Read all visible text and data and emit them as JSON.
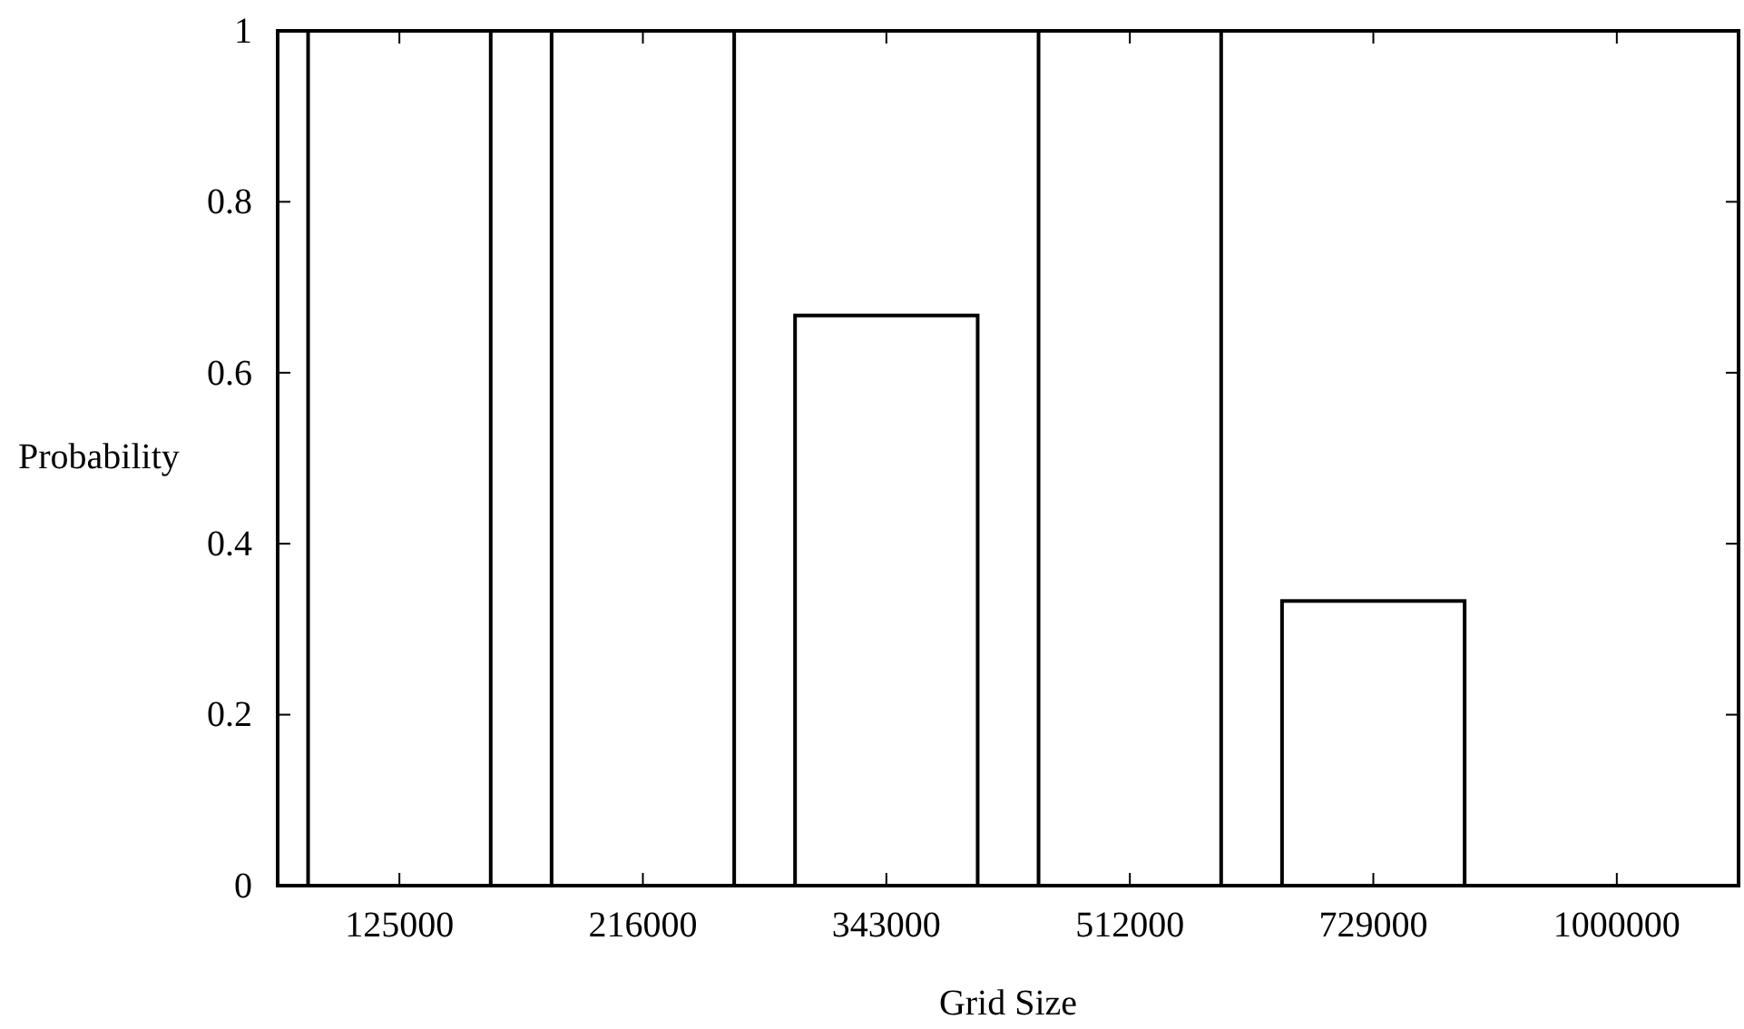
{
  "chart_data": {
    "type": "bar",
    "xlabel": "Grid Size",
    "ylabel": "Probability",
    "categories": [
      "125000",
      "216000",
      "343000",
      "512000",
      "729000",
      "1000000"
    ],
    "values": [
      1,
      1,
      0.667,
      1,
      0.333,
      0
    ],
    "color": "#000000",
    "ylim": [
      0,
      1
    ],
    "yticks": [
      0,
      {
        "value": 0.2,
        "label": "0.2"
      },
      {
        "value": 0.4,
        "label": "0.4"
      },
      {
        "value": 0.6,
        "label": "0.6"
      },
      {
        "value": 0.8,
        "label": "0.8"
      },
      1
    ],
    "grid": false
  }
}
